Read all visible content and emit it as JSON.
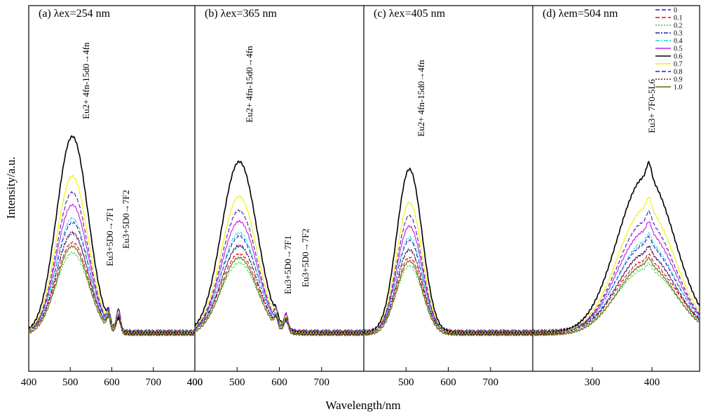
{
  "chart_data": {
    "type": "line",
    "ylabel": "Intensity/a.u.",
    "xlabel": "Wavelength/nm",
    "legend_position": "top-right",
    "series": [
      {
        "name": "0",
        "color": "#1f1fd6",
        "dash": "dash",
        "scale": 0.55
      },
      {
        "name": "0.1",
        "color": "#e01010",
        "dash": "dash",
        "scale": 0.45
      },
      {
        "name": "0.2",
        "color": "#22cc22",
        "dash": "dot",
        "scale": 0.4
      },
      {
        "name": "0.3",
        "color": "#1c1cb0",
        "dash": "dashdot",
        "scale": 0.5
      },
      {
        "name": "0.4",
        "color": "#22d4d4",
        "dash": "dashdot",
        "scale": 0.58
      },
      {
        "name": "0.5",
        "color": "#c020e0",
        "dash": "solid",
        "scale": 0.65
      },
      {
        "name": "0.6",
        "color": "#000000",
        "dash": "solid",
        "scale": 1.0
      },
      {
        "name": "0.7",
        "color": "#f0f000",
        "dash": "solid",
        "scale": 0.8
      },
      {
        "name": "0.8",
        "color": "#4a18b4",
        "dash": "dash",
        "scale": 0.72
      },
      {
        "name": "0.9",
        "color": "#6a1010",
        "dash": "dot",
        "scale": 0.52
      },
      {
        "name": "1.0",
        "color": "#5a6a10",
        "dash": "solid",
        "scale": 0.45
      }
    ],
    "panels": [
      {
        "label": "(a) λex=254 nm",
        "xlim": [
          400,
          800
        ],
        "xticks": [
          400,
          500,
          600,
          700
        ],
        "peak_x": 505,
        "peak_width": 38,
        "peak_height": 0.78,
        "annotations": [
          {
            "text": "Eu2+ 4fn-15d0→4fn"
          },
          {
            "text": "Eu3+5D0→7F1"
          },
          {
            "text": "Eu3+5D0→7F2"
          }
        ]
      },
      {
        "label": "(b) λex=365 nm",
        "xlim": [
          400,
          800
        ],
        "xticks": [
          400,
          500,
          600,
          700
        ],
        "peak_x": 505,
        "peak_width": 42,
        "peak_height": 0.68,
        "annotations": [
          {
            "text": "Eu2+ 4fn-15d0→4fn"
          },
          {
            "text": "Eu3+5D0→7F1"
          },
          {
            "text": "Eu3+5D0→7F2"
          }
        ]
      },
      {
        "label": "(c) λex=405 nm",
        "xlim": [
          400,
          800
        ],
        "xticks": [
          500,
          600,
          700
        ],
        "peak_x": 508,
        "peak_width": 30,
        "peak_height": 0.65,
        "annotations": [
          {
            "text": "Eu2+ 4fn-15d0→4fn"
          }
        ]
      },
      {
        "label": "(d) λem=504 nm",
        "xlim": [
          200,
          480
        ],
        "xticks": [
          300,
          400
        ],
        "peak_x": 390,
        "peak_width": 48,
        "peak_height": 0.62,
        "annotations": [
          {
            "text": "Eu3+ 7F0-5L6"
          }
        ]
      }
    ]
  }
}
